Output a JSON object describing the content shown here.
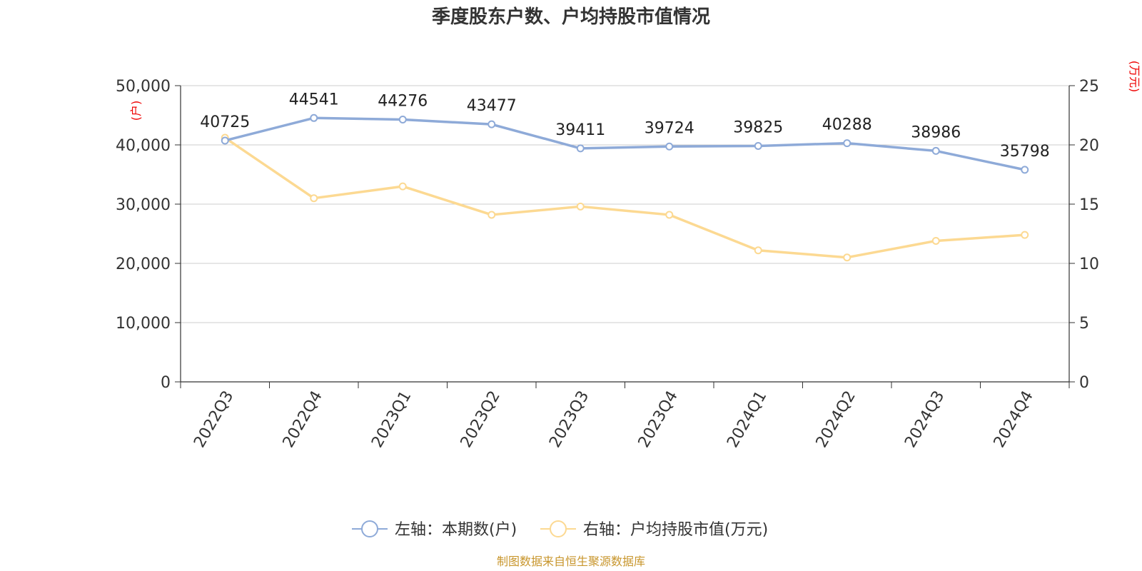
{
  "chart_data": {
    "type": "line",
    "title": "季度股东户数、户均持股市值情况",
    "categories": [
      "2022Q3",
      "2022Q4",
      "2023Q1",
      "2023Q2",
      "2023Q3",
      "2023Q4",
      "2024Q1",
      "2024Q2",
      "2024Q3",
      "2024Q4"
    ],
    "left_axis": {
      "unit": "(户)",
      "ylim": [
        0,
        50000
      ],
      "ticks": [
        "0",
        "10,000",
        "20,000",
        "30,000",
        "40,000",
        "50,000"
      ]
    },
    "right_axis": {
      "unit": "(万元)",
      "ylim": [
        0,
        25
      ],
      "ticks": [
        "0",
        "5",
        "10",
        "15",
        "20",
        "25"
      ]
    },
    "grid": true,
    "legend_position": "bottom",
    "series": [
      {
        "name": "左轴：本期数(户)",
        "axis": "left",
        "color": "#8eaad8",
        "values": [
          40725,
          44541,
          44276,
          43477,
          39411,
          39724,
          39825,
          40288,
          38986,
          35798
        ],
        "labels": [
          "40725",
          "44541",
          "44276",
          "43477",
          "39411",
          "39724",
          "39825",
          "40288",
          "38986",
          "35798"
        ]
      },
      {
        "name": "右轴：户均持股市值(万元)",
        "axis": "right",
        "color": "#fcd992",
        "values": [
          20.6,
          15.5,
          16.5,
          14.1,
          14.8,
          14.1,
          11.1,
          10.5,
          11.9,
          12.4
        ]
      }
    ],
    "source": "制图数据来自恒生聚源数据库"
  }
}
